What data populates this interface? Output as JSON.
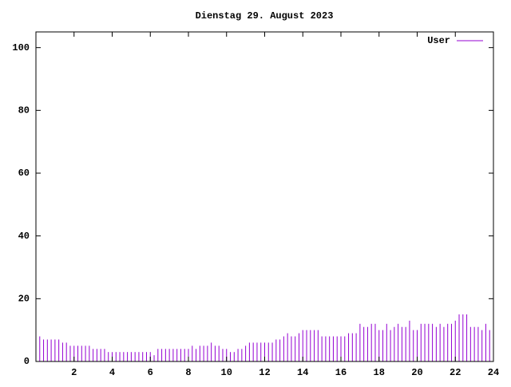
{
  "chart_data": {
    "type": "impulse",
    "title": "Dienstag 29. August 2023",
    "x": [
      0,
      0.2,
      0.4,
      0.6,
      0.8,
      1,
      1.2,
      1.4,
      1.6,
      1.8,
      2,
      2.2,
      2.4,
      2.6,
      2.8,
      3,
      3.2,
      3.4,
      3.6,
      3.8,
      4,
      4.2,
      4.4,
      4.6,
      4.8,
      5,
      5.2,
      5.4,
      5.6,
      5.8,
      6,
      6.2,
      6.4,
      6.6,
      6.8,
      7,
      7.2,
      7.4,
      7.6,
      7.8,
      8,
      8.2,
      8.4,
      8.6,
      8.8,
      9,
      9.2,
      9.4,
      9.6,
      9.8,
      10,
      10.2,
      10.4,
      10.6,
      10.8,
      11,
      11.2,
      11.4,
      11.6,
      11.8,
      12,
      12.2,
      12.4,
      12.6,
      12.8,
      13,
      13.2,
      13.4,
      13.6,
      13.8,
      14,
      14.2,
      14.4,
      14.6,
      14.8,
      15,
      15.2,
      15.4,
      15.6,
      15.8,
      16,
      16.2,
      16.4,
      16.6,
      16.8,
      17,
      17.2,
      17.4,
      17.6,
      17.8,
      18,
      18.2,
      18.4,
      18.6,
      18.8,
      19,
      19.2,
      19.4,
      19.6,
      19.8,
      20,
      20.2,
      20.4,
      20.6,
      20.8,
      21,
      21.2,
      21.4,
      21.6,
      21.8,
      22,
      22.2,
      22.4,
      22.6,
      22.8,
      23,
      23.2,
      23.4,
      23.6,
      23.8
    ],
    "series": [
      {
        "name": "User",
        "color": "#9400d3",
        "values": [
          9,
          8,
          7,
          7,
          7,
          7,
          7,
          6,
          6,
          5,
          5,
          5,
          5,
          5,
          5,
          4,
          4,
          4,
          4,
          3,
          3,
          3,
          3,
          3,
          3,
          3,
          3,
          3,
          3,
          3,
          3,
          2,
          4,
          4,
          4,
          4,
          4,
          4,
          4,
          4,
          4,
          5,
          4,
          5,
          5,
          5,
          6,
          5,
          5,
          4,
          4,
          3,
          3,
          4,
          4,
          5,
          6,
          6,
          6,
          6,
          6,
          6,
          6,
          7,
          7,
          8,
          9,
          8,
          8,
          9,
          10,
          10,
          10,
          10,
          10,
          8,
          8,
          8,
          8,
          8,
          8,
          8,
          9,
          9,
          9,
          12,
          11,
          11,
          12,
          12,
          10,
          10,
          12,
          10,
          11,
          12,
          11,
          11,
          13,
          10,
          10,
          12,
          12,
          12,
          12,
          11,
          12,
          11,
          12,
          12,
          13,
          15,
          15,
          15,
          11,
          11,
          11,
          10,
          12,
          10
        ]
      }
    ],
    "xlim": [
      0,
      24
    ],
    "xticks": [
      2,
      4,
      6,
      8,
      10,
      12,
      14,
      16,
      18,
      20,
      22,
      24
    ],
    "ylim": [
      0,
      105
    ],
    "yticks": [
      0,
      20,
      40,
      60,
      80,
      100
    ],
    "legend": "top-right"
  }
}
